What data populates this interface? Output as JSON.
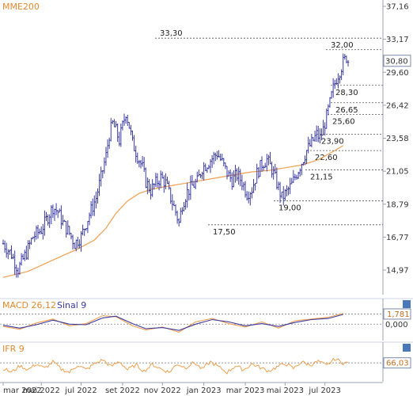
{
  "chart_data": [
    {
      "type": "ohlc",
      "title": "",
      "xlabel": "",
      "ylabel": "",
      "ylim": [
        13.8,
        37.5
      ],
      "y_scale": "log",
      "y_ticks": [
        "37,16",
        "33,17",
        "29,60",
        "26,42",
        "23,58",
        "21,05",
        "18,79",
        "16,77",
        "14,97"
      ],
      "y_tick_values": [
        37.16,
        33.17,
        29.6,
        26.42,
        23.58,
        21.05,
        18.79,
        16.77,
        14.97
      ],
      "x_ticks": [
        "mar 2022",
        "mai 2022",
        "jul 2022",
        "set 2022",
        "nov 2022",
        "jan 2023",
        "mar 2023",
        "mai 2023",
        "jul 2023"
      ],
      "grid": false,
      "price_color": "#3a3aa0",
      "close_path": [
        [
          0,
          16.4
        ],
        [
          5,
          15.8
        ],
        [
          9,
          15.0
        ],
        [
          14,
          15.9
        ],
        [
          18,
          16.8
        ],
        [
          23,
          17.2
        ],
        [
          27,
          18.0
        ],
        [
          30,
          18.6
        ],
        [
          33,
          18.3
        ],
        [
          36,
          17.6
        ],
        [
          40,
          17.0
        ],
        [
          43,
          16.4
        ],
        [
          47,
          16.8
        ],
        [
          50,
          17.6
        ],
        [
          53,
          18.4
        ],
        [
          56,
          19.2
        ],
        [
          59,
          20.6
        ],
        [
          62,
          22.2
        ],
        [
          64,
          23.9
        ],
        [
          66,
          24.8
        ],
        [
          68,
          24.2
        ],
        [
          70,
          23.4
        ],
        [
          72,
          24.6
        ],
        [
          74,
          25.8
        ],
        [
          76,
          24.6
        ],
        [
          78,
          23.2
        ],
        [
          81,
          22.2
        ],
        [
          84,
          21.3
        ],
        [
          86,
          20.3
        ],
        [
          89,
          19.7
        ],
        [
          92,
          20.2
        ],
        [
          95,
          20.6
        ],
        [
          98,
          20.2
        ],
        [
          101,
          19.2
        ],
        [
          104,
          18.3
        ],
        [
          106,
          17.6
        ],
        [
          108,
          18.8
        ],
        [
          111,
          19.6
        ],
        [
          114,
          20.0
        ],
        [
          117,
          20.3
        ],
        [
          120,
          21.3
        ],
        [
          123,
          21.6
        ],
        [
          126,
          22.0
        ],
        [
          129,
          22.4
        ],
        [
          132,
          21.7
        ],
        [
          135,
          20.9
        ],
        [
          138,
          20.4
        ],
        [
          141,
          20.8
        ],
        [
          144,
          20.3
        ],
        [
          147,
          19.5
        ],
        [
          150,
          19.8
        ],
        [
          153,
          20.9
        ],
        [
          156,
          21.6
        ],
        [
          159,
          21.9
        ],
        [
          162,
          21.2
        ],
        [
          165,
          20.2
        ],
        [
          168,
          19.2
        ],
        [
          171,
          19.6
        ],
        [
          174,
          20.1
        ],
        [
          177,
          20.9
        ],
        [
          180,
          21.7
        ],
        [
          183,
          22.6
        ],
        [
          186,
          23.2
        ],
        [
          189,
          23.9
        ],
        [
          191,
          23.6
        ],
        [
          193,
          24.3
        ],
        [
          195,
          25.4
        ],
        [
          197,
          26.6
        ],
        [
          199,
          28.0
        ],
        [
          201,
          29.0
        ],
        [
          203,
          29.8
        ],
        [
          205,
          30.6
        ],
        [
          207,
          31.2
        ],
        [
          208,
          30.8
        ]
      ],
      "x_domain": [
        0,
        208
      ],
      "x_tick_positions": [
        0,
        23,
        47,
        72,
        96,
        121,
        146,
        170,
        194
      ],
      "moving_average": {
        "name": "MME200",
        "color": "#f0a050",
        "points": [
          [
            0,
            14.6
          ],
          [
            15,
            14.9
          ],
          [
            30,
            15.5
          ],
          [
            45,
            16.1
          ],
          [
            55,
            16.6
          ],
          [
            62,
            17.3
          ],
          [
            68,
            18.2
          ],
          [
            75,
            19.0
          ],
          [
            82,
            19.5
          ],
          [
            90,
            19.8
          ],
          [
            100,
            20.0
          ],
          [
            110,
            20.2
          ],
          [
            125,
            20.5
          ],
          [
            140,
            20.8
          ],
          [
            150,
            21.0
          ],
          [
            160,
            21.1
          ],
          [
            170,
            21.3
          ],
          [
            180,
            21.5
          ],
          [
            190,
            21.9
          ],
          [
            200,
            22.6
          ],
          [
            205,
            23.0
          ]
        ]
      },
      "levels": [
        {
          "label": "33,30",
          "value": 33.3,
          "label_pos": "left"
        },
        {
          "label": "32,00",
          "value": 32.0,
          "label_pos": "right"
        },
        {
          "label": "28,30",
          "value": 28.3,
          "label_pos": "right"
        },
        {
          "label": "26,65",
          "value": 26.65,
          "label_pos": "right"
        },
        {
          "label": "25,60",
          "value": 25.6,
          "label_pos": "right"
        },
        {
          "label": "23,90",
          "value": 23.9,
          "label_pos": "right"
        },
        {
          "label": "22,60",
          "value": 22.6,
          "label_pos": "right"
        },
        {
          "label": "21,15",
          "value": 21.15,
          "label_pos": "right"
        },
        {
          "label": "19,00",
          "value": 19.0,
          "label_pos": "right"
        },
        {
          "label": "17,50",
          "value": 17.5,
          "label_pos": "right"
        }
      ],
      "last_value_label": "30,80",
      "last_value": 30.8
    },
    {
      "type": "line",
      "title": "MACD 26,12",
      "signal_label": "Sinal 9",
      "ylim": [
        -2.6,
        2.4
      ],
      "y_ticks": [
        "0,000"
      ],
      "y_tick_values": [
        0.0
      ],
      "last_value_label": "1,781",
      "last_value": 1.781,
      "series": [
        {
          "name": "MACD 26,12",
          "color": "#f0a050",
          "values": [
            [
              0,
              -0.4
            ],
            [
              10,
              -0.9
            ],
            [
              20,
              0.2
            ],
            [
              30,
              0.9
            ],
            [
              40,
              -0.3
            ],
            [
              50,
              0.1
            ],
            [
              60,
              1.5
            ],
            [
              68,
              1.3
            ],
            [
              78,
              -0.3
            ],
            [
              86,
              -1.0
            ],
            [
              96,
              -0.5
            ],
            [
              106,
              -1.4
            ],
            [
              116,
              0.4
            ],
            [
              126,
              1.0
            ],
            [
              136,
              0.1
            ],
            [
              146,
              -0.5
            ],
            [
              156,
              0.4
            ],
            [
              166,
              -0.7
            ],
            [
              176,
              0.6
            ],
            [
              186,
              0.9
            ],
            [
              196,
              1.2
            ],
            [
              205,
              1.9
            ]
          ]
        },
        {
          "name": "Sinal 9",
          "color": "#3a3aa0",
          "values": [
            [
              0,
              -0.2
            ],
            [
              10,
              -0.7
            ],
            [
              20,
              -0.1
            ],
            [
              30,
              0.7
            ],
            [
              40,
              0.0
            ],
            [
              50,
              -0.1
            ],
            [
              60,
              1.1
            ],
            [
              68,
              1.4
            ],
            [
              78,
              0.1
            ],
            [
              86,
              -0.8
            ],
            [
              96,
              -0.6
            ],
            [
              106,
              -1.1
            ],
            [
              116,
              0.0
            ],
            [
              126,
              0.8
            ],
            [
              136,
              0.4
            ],
            [
              146,
              -0.3
            ],
            [
              156,
              0.1
            ],
            [
              166,
              -0.4
            ],
            [
              176,
              0.3
            ],
            [
              186,
              0.8
            ],
            [
              196,
              1.0
            ],
            [
              205,
              1.7
            ]
          ]
        }
      ]
    },
    {
      "type": "line",
      "title": "IFR 9",
      "ylim": [
        0,
        100
      ],
      "last_value_label": "66,03",
      "last_value": 66.03,
      "series": [
        {
          "name": "IFR 9",
          "color": "#f0a050",
          "values": [
            [
              0,
              45
            ],
            [
              5,
              30
            ],
            [
              10,
              55
            ],
            [
              15,
              40
            ],
            [
              20,
              62
            ],
            [
              25,
              45
            ],
            [
              30,
              70
            ],
            [
              35,
              42
            ],
            [
              40,
              30
            ],
            [
              45,
              58
            ],
            [
              50,
              40
            ],
            [
              55,
              62
            ],
            [
              60,
              78
            ],
            [
              65,
              52
            ],
            [
              70,
              72
            ],
            [
              75,
              40
            ],
            [
              80,
              58
            ],
            [
              85,
              35
            ],
            [
              90,
              60
            ],
            [
              95,
              44
            ],
            [
              100,
              30
            ],
            [
              105,
              62
            ],
            [
              110,
              48
            ],
            [
              115,
              68
            ],
            [
              120,
              42
            ],
            [
              125,
              70
            ],
            [
              130,
              50
            ],
            [
              135,
              30
            ],
            [
              140,
              55
            ],
            [
              145,
              40
            ],
            [
              150,
              62
            ],
            [
              155,
              48
            ],
            [
              160,
              35
            ],
            [
              165,
              50
            ],
            [
              170,
              64
            ],
            [
              175,
              45
            ],
            [
              180,
              70
            ],
            [
              185,
              58
            ],
            [
              190,
              72
            ],
            [
              195,
              55
            ],
            [
              200,
              82
            ],
            [
              205,
              66
            ]
          ]
        }
      ]
    }
  ]
}
